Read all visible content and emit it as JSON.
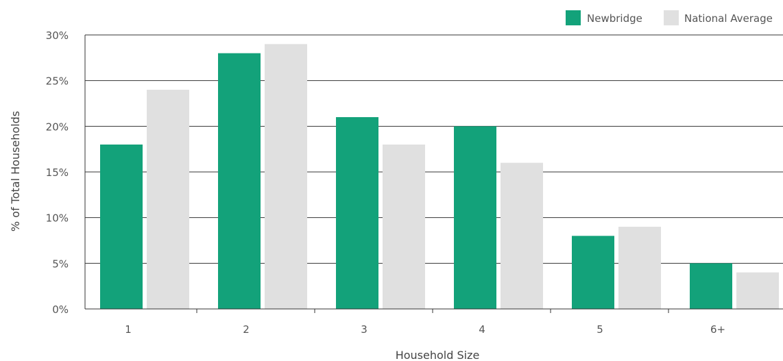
{
  "chart_data": {
    "type": "bar",
    "title": "",
    "xlabel": "Household Size",
    "ylabel": "% of Total Households",
    "categories": [
      "1",
      "2",
      "3",
      "4",
      "5",
      "6+"
    ],
    "series": [
      {
        "name": "Newbridge",
        "values": [
          18,
          28,
          21,
          20,
          8,
          5
        ]
      },
      {
        "name": "National Average",
        "values": [
          24,
          29,
          18,
          16,
          9,
          4
        ]
      }
    ],
    "ylim": [
      0,
      30
    ],
    "yticks": [
      0,
      5,
      10,
      15,
      20,
      25,
      30
    ],
    "ytick_labels": [
      "0%",
      "5%",
      "10%",
      "15%",
      "20%",
      "25%",
      "30%"
    ],
    "grid": true,
    "legend_position": "top-right",
    "colors": {
      "Newbridge": "#13a27a",
      "National Average": "#e0e0e0"
    }
  }
}
